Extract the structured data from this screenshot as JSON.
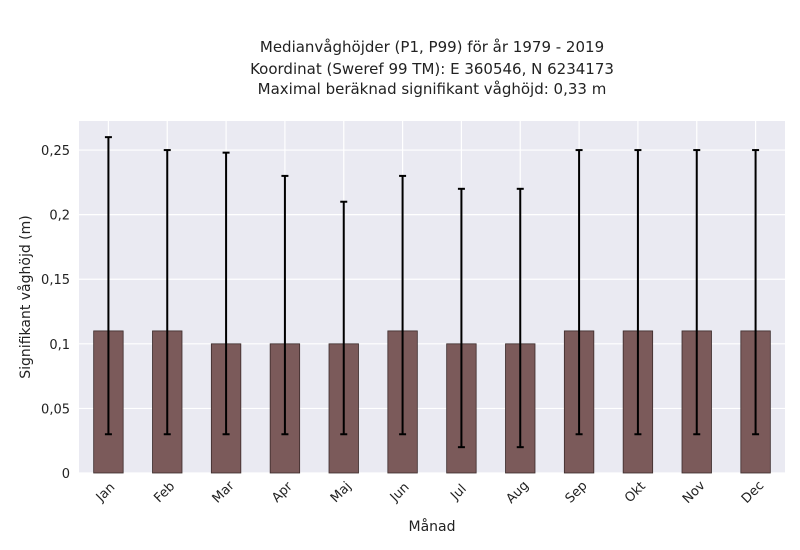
{
  "chart_data": {
    "type": "bar",
    "title_lines": [
      "Medianvåghöjder (P1, P99) för år 1979 - 2019",
      "Koordinat (Sweref 99 TM): E 360546, N 6234173",
      "Maximal beräknad signifikant våghöjd: 0,33 m"
    ],
    "xlabel": "Månad",
    "ylabel": "Signifikant våghöjd (m)",
    "categories": [
      "Jan",
      "Feb",
      "Mar",
      "Apr",
      "Maj",
      "Jun",
      "Jul",
      "Aug",
      "Sep",
      "Okt",
      "Nov",
      "Dec"
    ],
    "values": [
      0.11,
      0.11,
      0.1,
      0.1,
      0.1,
      0.11,
      0.1,
      0.1,
      0.11,
      0.11,
      0.11,
      0.11
    ],
    "p1": [
      0.03,
      0.03,
      0.03,
      0.03,
      0.03,
      0.03,
      0.02,
      0.02,
      0.03,
      0.03,
      0.03,
      0.03
    ],
    "p99": [
      0.26,
      0.25,
      0.248,
      0.23,
      0.21,
      0.23,
      0.22,
      0.22,
      0.25,
      0.25,
      0.25,
      0.25
    ],
    "ylim": [
      0,
      0.2725
    ],
    "yticks": [
      0,
      0.05,
      0.1,
      0.15,
      0.2,
      0.25
    ],
    "ytick_labels": [
      "0",
      "0,05",
      "0,1",
      "0,15",
      "0,2",
      "0,25"
    ],
    "grid": true,
    "colors": {
      "bar": "#7b5a5a",
      "bar_edge": "#3a2a2a",
      "errorbar": "#000000",
      "plot_bg": "#eaeaf2",
      "grid": "#ffffff"
    }
  }
}
